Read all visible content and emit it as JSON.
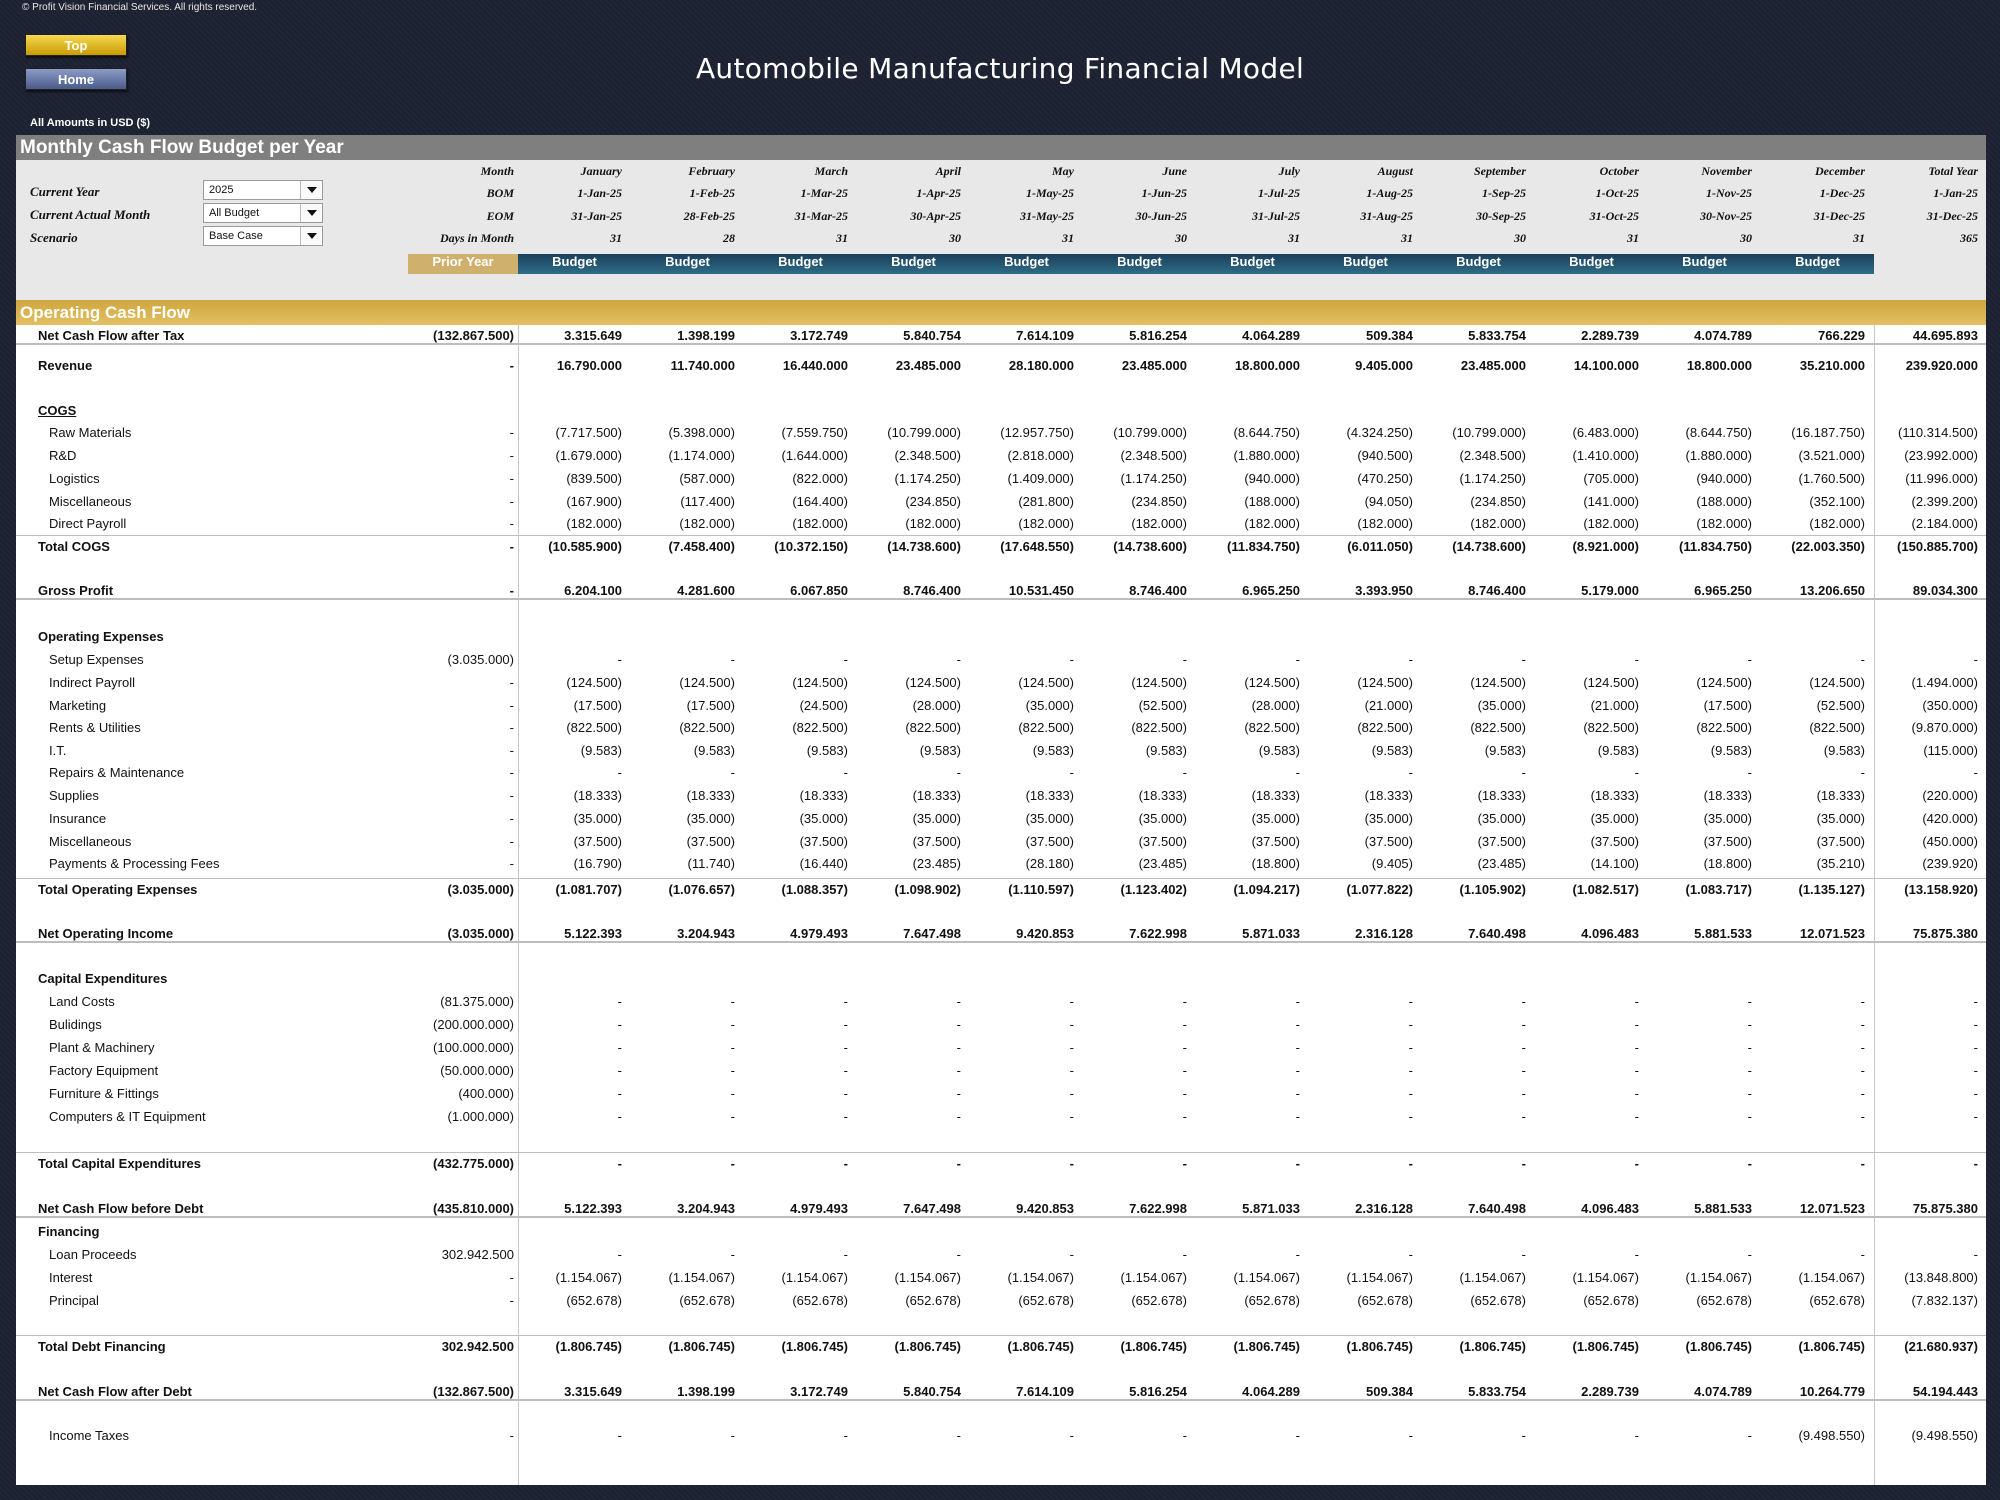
{
  "header": {
    "copyright": "© Profit Vision Financial Services. All rights reserved.",
    "top_button": "Top",
    "home_button": "Home",
    "title": "Automobile Manufacturing Financial Model",
    "currency_note": "All Amounts in  USD ($)"
  },
  "sheet": {
    "title": "Monthly Cash Flow Budget per Year",
    "controls": {
      "current_year_label": "Current Year",
      "current_year_value": "2025",
      "current_month_label": "Current Actual Month",
      "current_month_value": "All Budget",
      "scenario_label": "Scenario",
      "scenario_value": "Base Case"
    },
    "row_labels": {
      "month": "Month",
      "bom": "BOM",
      "eom": "EOM",
      "days": "Days in Month"
    },
    "months": [
      "January",
      "February",
      "March",
      "April",
      "May",
      "June",
      "July",
      "August",
      "September",
      "October",
      "November",
      "December",
      "Total Year"
    ],
    "bom": [
      "1-Jan-25",
      "1-Feb-25",
      "1-Mar-25",
      "1-Apr-25",
      "1-May-25",
      "1-Jun-25",
      "1-Jul-25",
      "1-Aug-25",
      "1-Sep-25",
      "1-Oct-25",
      "1-Nov-25",
      "1-Dec-25",
      "1-Jan-25"
    ],
    "eom": [
      "31-Jan-25",
      "28-Feb-25",
      "31-Mar-25",
      "30-Apr-25",
      "31-May-25",
      "30-Jun-25",
      "31-Jul-25",
      "31-Aug-25",
      "30-Sep-25",
      "31-Oct-25",
      "30-Nov-25",
      "31-Dec-25",
      "31-Dec-25"
    ],
    "days": [
      "31",
      "28",
      "31",
      "30",
      "31",
      "30",
      "31",
      "31",
      "30",
      "31",
      "30",
      "31",
      "365"
    ],
    "prior_year_label": "Prior Year",
    "budget_labels": [
      "Budget",
      "Budget",
      "Budget",
      "Budget",
      "Budget",
      "Budget",
      "Budget",
      "Budget",
      "Budget",
      "Budget",
      "Budget",
      "Budget"
    ],
    "section_title": "Operating Cash Flow"
  },
  "rows": [
    {
      "label": "Revenue",
      "style": "bold",
      "prior": "-",
      "values": [
        "16.790.000",
        "11.740.000",
        "16.440.000",
        "23.485.000",
        "28.180.000",
        "23.485.000",
        "18.800.000",
        "9.405.000",
        "23.485.000",
        "14.100.000",
        "18.800.000",
        "35.210.000",
        "239.920.000"
      ],
      "bold_values": false
    },
    {
      "label": "COGS",
      "style": "heading-underline",
      "prior": "",
      "values": []
    },
    {
      "label": "Raw Materials",
      "style": "indent",
      "prior": "-",
      "values": [
        "(7.717.500)",
        "(5.398.000)",
        "(7.559.750)",
        "(10.799.000)",
        "(12.957.750)",
        "(10.799.000)",
        "(8.644.750)",
        "(4.324.250)",
        "(10.799.000)",
        "(6.483.000)",
        "(8.644.750)",
        "(16.187.750)",
        "(110.314.500)"
      ]
    },
    {
      "label": "R&D",
      "style": "indent",
      "prior": "-",
      "values": [
        "(1.679.000)",
        "(1.174.000)",
        "(1.644.000)",
        "(2.348.500)",
        "(2.818.000)",
        "(2.348.500)",
        "(1.880.000)",
        "(940.500)",
        "(2.348.500)",
        "(1.410.000)",
        "(1.880.000)",
        "(3.521.000)",
        "(23.992.000)"
      ]
    },
    {
      "label": "Logistics",
      "style": "indent",
      "prior": "-",
      "values": [
        "(839.500)",
        "(587.000)",
        "(822.000)",
        "(1.174.250)",
        "(1.409.000)",
        "(1.174.250)",
        "(940.000)",
        "(470.250)",
        "(1.174.250)",
        "(705.000)",
        "(940.000)",
        "(1.760.500)",
        "(11.996.000)"
      ]
    },
    {
      "label": "Miscellaneous",
      "style": "indent",
      "prior": "-",
      "values": [
        "(167.900)",
        "(117.400)",
        "(164.400)",
        "(234.850)",
        "(281.800)",
        "(234.850)",
        "(188.000)",
        "(94.050)",
        "(234.850)",
        "(141.000)",
        "(188.000)",
        "(352.100)",
        "(2.399.200)"
      ]
    },
    {
      "label": "Direct Payroll",
      "style": "indent",
      "prior": "-",
      "values": [
        "(182.000)",
        "(182.000)",
        "(182.000)",
        "(182.000)",
        "(182.000)",
        "(182.000)",
        "(182.000)",
        "(182.000)",
        "(182.000)",
        "(182.000)",
        "(182.000)",
        "(182.000)",
        "(2.184.000)"
      ]
    },
    {
      "label": "Total COGS",
      "style": "total",
      "prior": "-",
      "values": [
        "(10.585.900)",
        "(7.458.400)",
        "(10.372.150)",
        "(14.738.600)",
        "(17.648.550)",
        "(14.738.600)",
        "(11.834.750)",
        "(6.011.050)",
        "(14.738.600)",
        "(8.921.000)",
        "(11.834.750)",
        "(22.003.350)",
        "(150.885.700)"
      ]
    },
    {
      "label": "Gross Profit",
      "style": "grand",
      "prior": "-",
      "values": [
        "6.204.100",
        "4.281.600",
        "6.067.850",
        "8.746.400",
        "10.531.450",
        "8.746.400",
        "6.965.250",
        "3.393.950",
        "8.746.400",
        "5.179.000",
        "6.965.250",
        "13.206.650",
        "89.034.300"
      ]
    },
    {
      "label": "Operating Expenses",
      "style": "heading",
      "prior": "",
      "values": []
    },
    {
      "label": "Setup Expenses",
      "style": "indent",
      "prior": "(3.035.000)",
      "values": [
        "-",
        "-",
        "-",
        "-",
        "-",
        "-",
        "-",
        "-",
        "-",
        "-",
        "-",
        "-",
        "-"
      ]
    },
    {
      "label": "Indirect Payroll",
      "style": "indent",
      "prior": "-",
      "values": [
        "(124.500)",
        "(124.500)",
        "(124.500)",
        "(124.500)",
        "(124.500)",
        "(124.500)",
        "(124.500)",
        "(124.500)",
        "(124.500)",
        "(124.500)",
        "(124.500)",
        "(124.500)",
        "(1.494.000)"
      ]
    },
    {
      "label": "Marketing",
      "style": "indent",
      "prior": "-",
      "values": [
        "(17.500)",
        "(17.500)",
        "(24.500)",
        "(28.000)",
        "(35.000)",
        "(52.500)",
        "(28.000)",
        "(21.000)",
        "(35.000)",
        "(21.000)",
        "(17.500)",
        "(52.500)",
        "(350.000)"
      ]
    },
    {
      "label": "Rents & Utilities",
      "style": "indent",
      "prior": "-",
      "values": [
        "(822.500)",
        "(822.500)",
        "(822.500)",
        "(822.500)",
        "(822.500)",
        "(822.500)",
        "(822.500)",
        "(822.500)",
        "(822.500)",
        "(822.500)",
        "(822.500)",
        "(822.500)",
        "(9.870.000)"
      ]
    },
    {
      "label": "I.T.",
      "style": "indent",
      "prior": "-",
      "values": [
        "(9.583)",
        "(9.583)",
        "(9.583)",
        "(9.583)",
        "(9.583)",
        "(9.583)",
        "(9.583)",
        "(9.583)",
        "(9.583)",
        "(9.583)",
        "(9.583)",
        "(9.583)",
        "(115.000)"
      ]
    },
    {
      "label": "Repairs & Maintenance",
      "style": "indent",
      "prior": "-",
      "values": [
        "-",
        "-",
        "-",
        "-",
        "-",
        "-",
        "-",
        "-",
        "-",
        "-",
        "-",
        "-",
        "-"
      ]
    },
    {
      "label": "Supplies",
      "style": "indent",
      "prior": "-",
      "values": [
        "(18.333)",
        "(18.333)",
        "(18.333)",
        "(18.333)",
        "(18.333)",
        "(18.333)",
        "(18.333)",
        "(18.333)",
        "(18.333)",
        "(18.333)",
        "(18.333)",
        "(18.333)",
        "(220.000)"
      ]
    },
    {
      "label": "Insurance",
      "style": "indent",
      "prior": "-",
      "values": [
        "(35.000)",
        "(35.000)",
        "(35.000)",
        "(35.000)",
        "(35.000)",
        "(35.000)",
        "(35.000)",
        "(35.000)",
        "(35.000)",
        "(35.000)",
        "(35.000)",
        "(35.000)",
        "(420.000)"
      ]
    },
    {
      "label": "Miscellaneous",
      "style": "indent",
      "prior": "-",
      "values": [
        "(37.500)",
        "(37.500)",
        "(37.500)",
        "(37.500)",
        "(37.500)",
        "(37.500)",
        "(37.500)",
        "(37.500)",
        "(37.500)",
        "(37.500)",
        "(37.500)",
        "(37.500)",
        "(450.000)"
      ]
    },
    {
      "label": "Payments & Processing Fees",
      "style": "indent",
      "prior": "-",
      "values": [
        "(16.790)",
        "(11.740)",
        "(16.440)",
        "(23.485)",
        "(28.180)",
        "(23.485)",
        "(18.800)",
        "(9.405)",
        "(23.485)",
        "(14.100)",
        "(18.800)",
        "(35.210)",
        "(239.920)"
      ]
    },
    {
      "label": "Total Operating Expenses",
      "style": "total",
      "prior": "(3.035.000)",
      "values": [
        "(1.081.707)",
        "(1.076.657)",
        "(1.088.357)",
        "(1.098.902)",
        "(1.110.597)",
        "(1.123.402)",
        "(1.094.217)",
        "(1.077.822)",
        "(1.105.902)",
        "(1.082.517)",
        "(1.083.717)",
        "(1.135.127)",
        "(13.158.920)"
      ]
    },
    {
      "label": "Net Operating Income",
      "style": "grand",
      "prior": "(3.035.000)",
      "values": [
        "5.122.393",
        "3.204.943",
        "4.979.493",
        "7.647.498",
        "9.420.853",
        "7.622.998",
        "5.871.033",
        "2.316.128",
        "7.640.498",
        "4.096.483",
        "5.881.533",
        "12.071.523",
        "75.875.380"
      ]
    },
    {
      "label": "Capital Expenditures",
      "style": "heading",
      "prior": "",
      "values": []
    },
    {
      "label": "Land Costs",
      "style": "indent",
      "prior": "(81.375.000)",
      "values": [
        "-",
        "-",
        "-",
        "-",
        "-",
        "-",
        "-",
        "-",
        "-",
        "-",
        "-",
        "-",
        "-"
      ]
    },
    {
      "label": "Bulidings",
      "style": "indent",
      "prior": "(200.000.000)",
      "values": [
        "-",
        "-",
        "-",
        "-",
        "-",
        "-",
        "-",
        "-",
        "-",
        "-",
        "-",
        "-",
        "-"
      ]
    },
    {
      "label": "Plant & Machinery",
      "style": "indent",
      "prior": "(100.000.000)",
      "values": [
        "-",
        "-",
        "-",
        "-",
        "-",
        "-",
        "-",
        "-",
        "-",
        "-",
        "-",
        "-",
        "-"
      ]
    },
    {
      "label": "Factory Equipment",
      "style": "indent",
      "prior": "(50.000.000)",
      "values": [
        "-",
        "-",
        "-",
        "-",
        "-",
        "-",
        "-",
        "-",
        "-",
        "-",
        "-",
        "-",
        "-"
      ]
    },
    {
      "label": "Furniture & Fittings",
      "style": "indent",
      "prior": "(400.000)",
      "values": [
        "-",
        "-",
        "-",
        "-",
        "-",
        "-",
        "-",
        "-",
        "-",
        "-",
        "-",
        "-",
        "-"
      ]
    },
    {
      "label": "Computers & IT Equipment",
      "style": "indent",
      "prior": "(1.000.000)",
      "values": [
        "-",
        "-",
        "-",
        "-",
        "-",
        "-",
        "-",
        "-",
        "-",
        "-",
        "-",
        "-",
        "-"
      ]
    },
    {
      "label": "Total Capital Expenditures",
      "style": "total",
      "prior": "(432.775.000)",
      "values": [
        "-",
        "-",
        "-",
        "-",
        "-",
        "-",
        "-",
        "-",
        "-",
        "-",
        "-",
        "-",
        "-"
      ]
    },
    {
      "label": "Net Cash Flow before Debt",
      "style": "grand",
      "prior": "(435.810.000)",
      "values": [
        "5.122.393",
        "3.204.943",
        "4.979.493",
        "7.647.498",
        "9.420.853",
        "7.622.998",
        "5.871.033",
        "2.316.128",
        "7.640.498",
        "4.096.483",
        "5.881.533",
        "12.071.523",
        "75.875.380"
      ]
    },
    {
      "label": "Financing",
      "style": "heading",
      "prior": "",
      "values": []
    },
    {
      "label": "Loan Proceeds",
      "style": "indent",
      "prior": "302.942.500",
      "values": [
        "-",
        "-",
        "-",
        "-",
        "-",
        "-",
        "-",
        "-",
        "-",
        "-",
        "-",
        "-",
        "-"
      ]
    },
    {
      "label": "Interest",
      "style": "indent",
      "prior": "-",
      "values": [
        "(1.154.067)",
        "(1.154.067)",
        "(1.154.067)",
        "(1.154.067)",
        "(1.154.067)",
        "(1.154.067)",
        "(1.154.067)",
        "(1.154.067)",
        "(1.154.067)",
        "(1.154.067)",
        "(1.154.067)",
        "(1.154.067)",
        "(13.848.800)"
      ]
    },
    {
      "label": "Principal",
      "style": "indent",
      "prior": "-",
      "values": [
        "(652.678)",
        "(652.678)",
        "(652.678)",
        "(652.678)",
        "(652.678)",
        "(652.678)",
        "(652.678)",
        "(652.678)",
        "(652.678)",
        "(652.678)",
        "(652.678)",
        "(652.678)",
        "(7.832.137)"
      ]
    },
    {
      "label": "Total Debt Financing",
      "style": "total",
      "prior": "302.942.500",
      "values": [
        "(1.806.745)",
        "(1.806.745)",
        "(1.806.745)",
        "(1.806.745)",
        "(1.806.745)",
        "(1.806.745)",
        "(1.806.745)",
        "(1.806.745)",
        "(1.806.745)",
        "(1.806.745)",
        "(1.806.745)",
        "(1.806.745)",
        "(21.680.937)"
      ]
    },
    {
      "label": "Net Cash Flow after Debt",
      "style": "grand",
      "prior": "(132.867.500)",
      "values": [
        "3.315.649",
        "1.398.199",
        "3.172.749",
        "5.840.754",
        "7.614.109",
        "5.816.254",
        "4.064.289",
        "509.384",
        "5.833.754",
        "2.289.739",
        "4.074.789",
        "10.264.779",
        "54.194.443"
      ]
    },
    {
      "label": "Income Taxes",
      "style": "indent",
      "prior": "-",
      "values": [
        "-",
        "-",
        "-",
        "-",
        "-",
        "-",
        "-",
        "-",
        "-",
        "-",
        "-",
        "(9.498.550)",
        "(9.498.550)"
      ]
    },
    {
      "label": "Net Cash Flow after Tax",
      "style": "grand",
      "prior": "(132.867.500)",
      "values": [
        "3.315.649",
        "1.398.199",
        "3.172.749",
        "5.840.754",
        "7.614.109",
        "5.816.254",
        "4.064.289",
        "509.384",
        "5.833.754",
        "2.289.739",
        "4.074.789",
        "766.229",
        "44.695.893"
      ]
    }
  ]
}
